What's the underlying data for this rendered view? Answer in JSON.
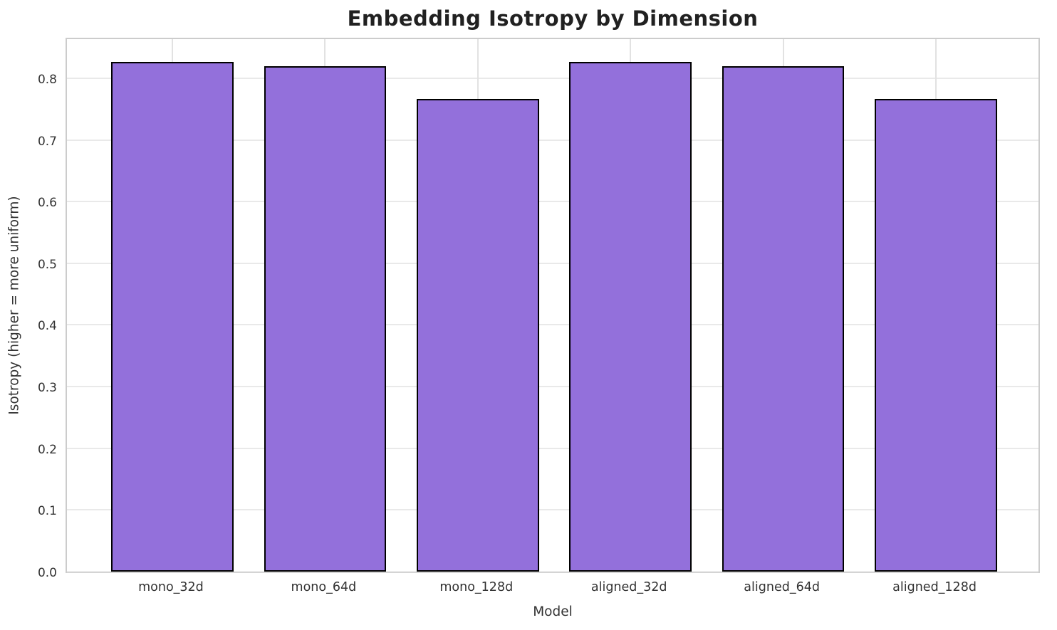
{
  "figure": {
    "title": "Embedding Isotropy by Dimension"
  },
  "chart_data": {
    "type": "bar",
    "title": "Embedding Isotropy by Dimension",
    "categories": [
      "mono_32d",
      "mono_64d",
      "mono_128d",
      "aligned_32d",
      "aligned_64d",
      "aligned_128d"
    ],
    "values": [
      0.827,
      0.82,
      0.766,
      0.826,
      0.82,
      0.766
    ],
    "xlabel": "Model",
    "ylabel": "Isotropy (higher = more uniform)",
    "ylim": [
      0,
      0.868
    ],
    "ytick_labels": [
      "0.0",
      "0.1",
      "0.2",
      "0.3",
      "0.4",
      "0.5",
      "0.6",
      "0.7",
      "0.8"
    ],
    "ytick_values": [
      0,
      0.1,
      0.2,
      0.3,
      0.4,
      0.5,
      0.6,
      0.7,
      0.8
    ],
    "grid": true,
    "legend_position": "none",
    "bar_width_fraction": 0.8,
    "colors": {
      "bar_fill": "#9370DB",
      "bar_edge": "#000000",
      "grid_line": "#e9e9e9",
      "spine": "#cccccc",
      "title_text": "#212121",
      "tick_text": "#333333",
      "background": "#ffffff"
    }
  }
}
